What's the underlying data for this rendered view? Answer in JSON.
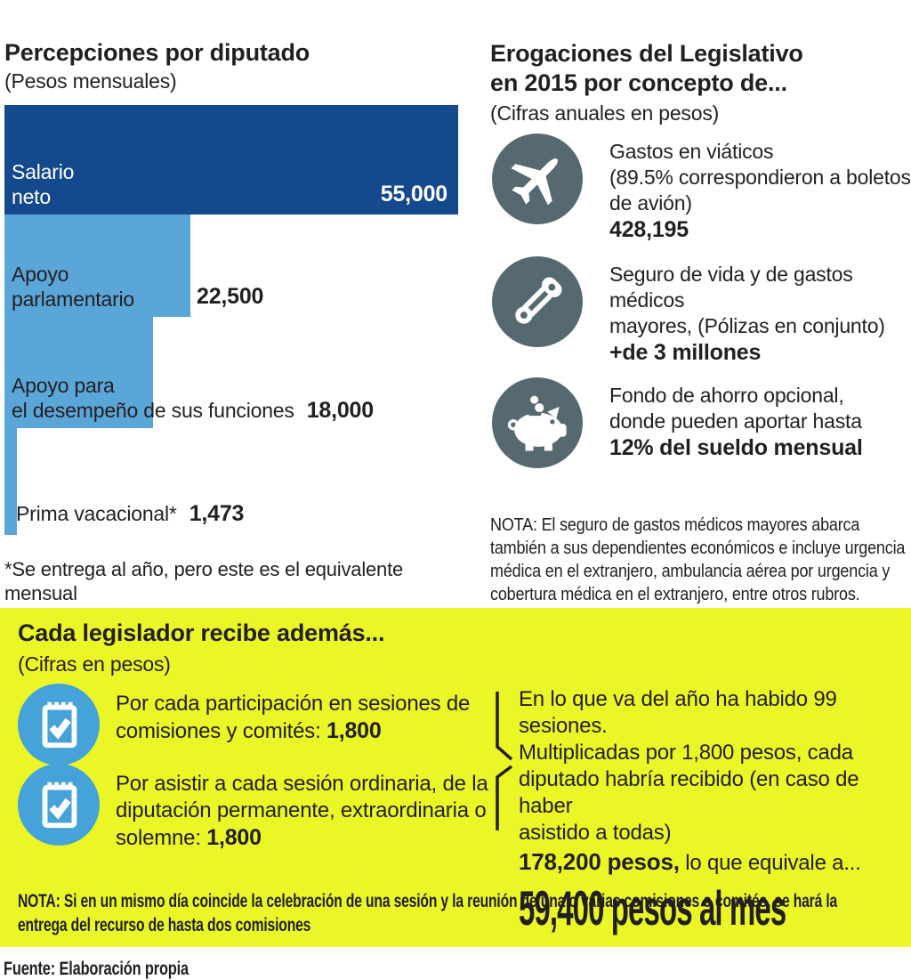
{
  "colors": {
    "dark_blue": "#15498e",
    "light_blue": "#5ba6d8",
    "slate": "#566970",
    "yellow": "#ebf626",
    "circle_blue": "#45a3d9",
    "text": "#231f20"
  },
  "chart_data": {
    "type": "bar",
    "orientation": "horizontal",
    "title": "Percepciones por diputado",
    "subtitle": "(Pesos mensuales)",
    "categories": [
      "Salario neto",
      "Apoyo parlamentario",
      "Apoyo para el desempeño de sus funciones",
      "Prima vacacional*"
    ],
    "values": [
      55000,
      22500,
      18000,
      1473
    ],
    "value_labels": [
      "55,000",
      "22,500",
      "18,000",
      "1,473"
    ],
    "xlim": [
      0,
      55000
    ],
    "grid": false,
    "legend": false,
    "bar_labels_display": [
      "Salario\nneto",
      "Apoyo\nparlamentario",
      "Apoyo para\nel desempeño de sus funciones",
      "Prima vacacional*"
    ],
    "footnote": "*Se entrega al año, pero este es el equivalente\nmensual"
  },
  "right_panel": {
    "title": "Erogaciones del Legislativo\nen 2015 por concepto de...",
    "subtitle": "(Cifras anuales en pesos)",
    "items": [
      {
        "icon": "airplane-icon",
        "text": "Gastos en viáticos\n(89.5%  correspondieron a boletos\nde avión)",
        "value": "428,195"
      },
      {
        "icon": "safety-pin-icon",
        "text": "Seguro de vida y de gastos médicos\nmayores, (Pólizas en conjunto)",
        "value": "+de 3 millones"
      },
      {
        "icon": "piggy-bank-icon",
        "text": "Fondo de ahorro opcional,\ndonde pueden aportar hasta",
        "value": "12% del sueldo mensual"
      }
    ],
    "note": "NOTA: El seguro de gastos médicos mayores abarca\ntambién a sus dependientes económicos e incluye urgencia\nmédica en el extranjero, ambulancia aérea por urgencia y\ncobertura médica en el extranjero, entre otros rubros."
  },
  "bonus_panel": {
    "title": "Cada legislador recibe además...",
    "subtitle": "(Cifras en pesos)",
    "items": [
      {
        "icon": "checklist-icon",
        "text": "Por cada participación en sesiones de\ncomisiones y comités: ",
        "value": "1,800"
      },
      {
        "icon": "checklist-icon",
        "text": "Por asistir a cada sesión ordinaria, de la\ndiputación permanente, extraordinaria o\nsolemne: ",
        "value": "1,800"
      }
    ],
    "summary": {
      "body": "En lo que va del año ha habido 99 sesiones.\nMultiplicadas por 1,800 pesos, cada\ndiputado habría recibido (en caso de haber\nasistido a todas)",
      "amount": "178,200 pesos,",
      "amount_tail": " lo que equivale a...",
      "per_month": "59,400 pesos al mes"
    },
    "note": "NOTA: Si en un mismo día coincide la celebración de una sesión y la reunión de una o varias comisiones o comités, se hará la\nentrega del recurso de hasta dos comisiones"
  },
  "footer": {
    "source": "Fuente: Elaboración propia"
  }
}
